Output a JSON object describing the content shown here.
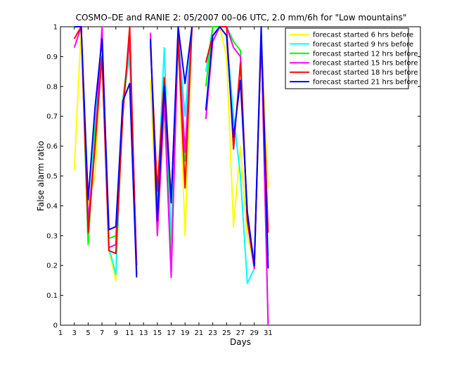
{
  "chart_data": {
    "type": "line",
    "title": "COSMO–DE and RANIE 2: 05/2007 00–06 UTC, 2.0 mm/6h for \"Low mountains\"",
    "xlabel": "Days",
    "ylabel": "False alarm ratio",
    "xlim": [
      1,
      53
    ],
    "ylim": [
      0,
      1
    ],
    "x_ticks": [
      1,
      3,
      5,
      7,
      9,
      11,
      13,
      15,
      17,
      19,
      21,
      23,
      25,
      27,
      29,
      31
    ],
    "y_ticks": [
      0,
      0.1,
      0.2,
      0.3,
      0.4,
      0.5,
      0.6,
      0.7,
      0.8,
      0.9,
      1
    ],
    "y_tick_labels": [
      "0",
      "0.1",
      "0.2",
      "0.3",
      "0.4",
      "0.5",
      "0.6",
      "0.7",
      "0.8",
      "0.9",
      "1"
    ],
    "grid": false,
    "legend_position": "top-right",
    "x": [
      3,
      4,
      5,
      6,
      7,
      8,
      9,
      10,
      11,
      12,
      13,
      14,
      15,
      16,
      17,
      18,
      19,
      20,
      21,
      22,
      23,
      24,
      25,
      26,
      27,
      28,
      29,
      30,
      31
    ],
    "series": [
      {
        "name": "forecast started 6 hrs before",
        "color": "#ffff00",
        "values": [
          0.52,
          1.0,
          0.41,
          0.5,
          0.95,
          0.25,
          0.15,
          0.72,
          0.92,
          0.2,
          null,
          0.82,
          0.3,
          0.7,
          0.3,
          0.95,
          0.3,
          1.0,
          null,
          0.8,
          0.95,
          1.0,
          0.9,
          0.33,
          0.6,
          0.3,
          0.2,
          0.97,
          0.46
        ]
      },
      {
        "name": "forecast started 9 hrs before",
        "color": "#00ffff",
        "values": [
          1.0,
          1.0,
          0.3,
          0.7,
          0.97,
          0.26,
          0.17,
          0.75,
          0.9,
          0.2,
          null,
          0.95,
          0.42,
          0.93,
          0.28,
          0.97,
          0.7,
          1.0,
          null,
          0.85,
          1.0,
          1.0,
          0.97,
          0.7,
          0.5,
          0.14,
          0.19,
          0.97,
          0.23
        ]
      },
      {
        "name": "forecast started 12 hrs before",
        "color": "#00ff00",
        "values": [
          1.0,
          1.0,
          0.27,
          0.65,
          0.9,
          0.29,
          0.3,
          0.75,
          0.95,
          0.2,
          null,
          0.95,
          0.4,
          0.8,
          0.2,
          0.97,
          0.55,
          1.0,
          null,
          0.8,
          1.0,
          1.0,
          1.0,
          0.95,
          0.92,
          0.35,
          0.19,
          0.97,
          0.0
        ]
      },
      {
        "name": "forecast started 15 hrs before",
        "color": "#ff00ff",
        "values": [
          0.93,
          1.0,
          0.35,
          0.6,
          1.0,
          0.26,
          0.27,
          0.73,
          0.96,
          0.2,
          null,
          0.98,
          0.3,
          0.75,
          0.16,
          0.98,
          0.58,
          1.0,
          null,
          0.69,
          0.95,
          1.0,
          1.0,
          0.93,
          0.9,
          0.35,
          0.19,
          0.97,
          0.0
        ]
      },
      {
        "name": "forecast started 18 hrs before",
        "color": "#ff0000",
        "values": [
          0.96,
          1.0,
          0.31,
          0.6,
          0.9,
          0.25,
          0.24,
          0.7,
          1.0,
          0.17,
          null,
          0.94,
          0.45,
          0.83,
          0.42,
          0.96,
          0.46,
          1.0,
          null,
          0.88,
          0.97,
          1.0,
          1.0,
          0.59,
          0.88,
          0.35,
          0.2,
          0.97,
          0.31
        ]
      },
      {
        "name": "forecast started 21 hrs before",
        "color": "#0000ff",
        "values": [
          1.0,
          1.0,
          0.42,
          0.73,
          0.96,
          0.32,
          0.33,
          0.75,
          0.81,
          0.16,
          null,
          0.96,
          0.35,
          0.8,
          0.41,
          1.0,
          0.81,
          1.0,
          null,
          0.72,
          0.97,
          1.0,
          0.97,
          0.63,
          0.82,
          0.38,
          0.2,
          1.0,
          0.19
        ]
      }
    ]
  }
}
